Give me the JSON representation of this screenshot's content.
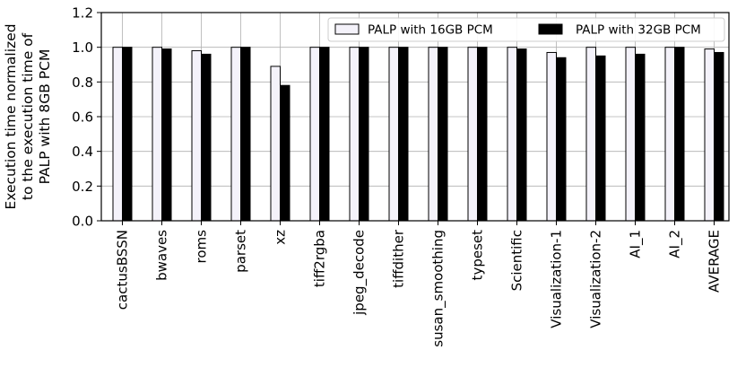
{
  "chart_data": {
    "type": "bar",
    "ylabel_lines": [
      "Execution time normalized",
      "to the execution time of",
      "PALP with 8GB PCM"
    ],
    "xlabel": "",
    "ylim": [
      0,
      1.2
    ],
    "yticks": [
      0.0,
      0.2,
      0.4,
      0.6,
      0.8,
      1.0,
      1.2
    ],
    "grid": true,
    "legend_position": "top-right",
    "categories": [
      "cactusBSSN",
      "bwaves",
      "roms",
      "parset",
      "xz",
      "tiff2rgba",
      "jpeg_decode",
      "tiffdither",
      "susan_smoothing",
      "typeset",
      "Scientific",
      "Visualization-1",
      "Visualization-2",
      "AI_1",
      "AI_2",
      "AVERAGE"
    ],
    "series": [
      {
        "name": "PALP with 16GB PCM",
        "color": "#f4f2fa",
        "values": [
          1.0,
          1.0,
          0.98,
          1.0,
          0.89,
          1.0,
          1.0,
          1.0,
          1.0,
          1.0,
          1.0,
          0.97,
          1.0,
          1.0,
          1.0,
          0.99
        ]
      },
      {
        "name": "PALP with 32GB PCM",
        "color": "#000000",
        "values": [
          1.0,
          0.99,
          0.96,
          1.0,
          0.78,
          1.0,
          1.0,
          1.0,
          1.0,
          1.0,
          0.99,
          0.94,
          0.95,
          0.96,
          1.0,
          0.97
        ]
      }
    ]
  }
}
